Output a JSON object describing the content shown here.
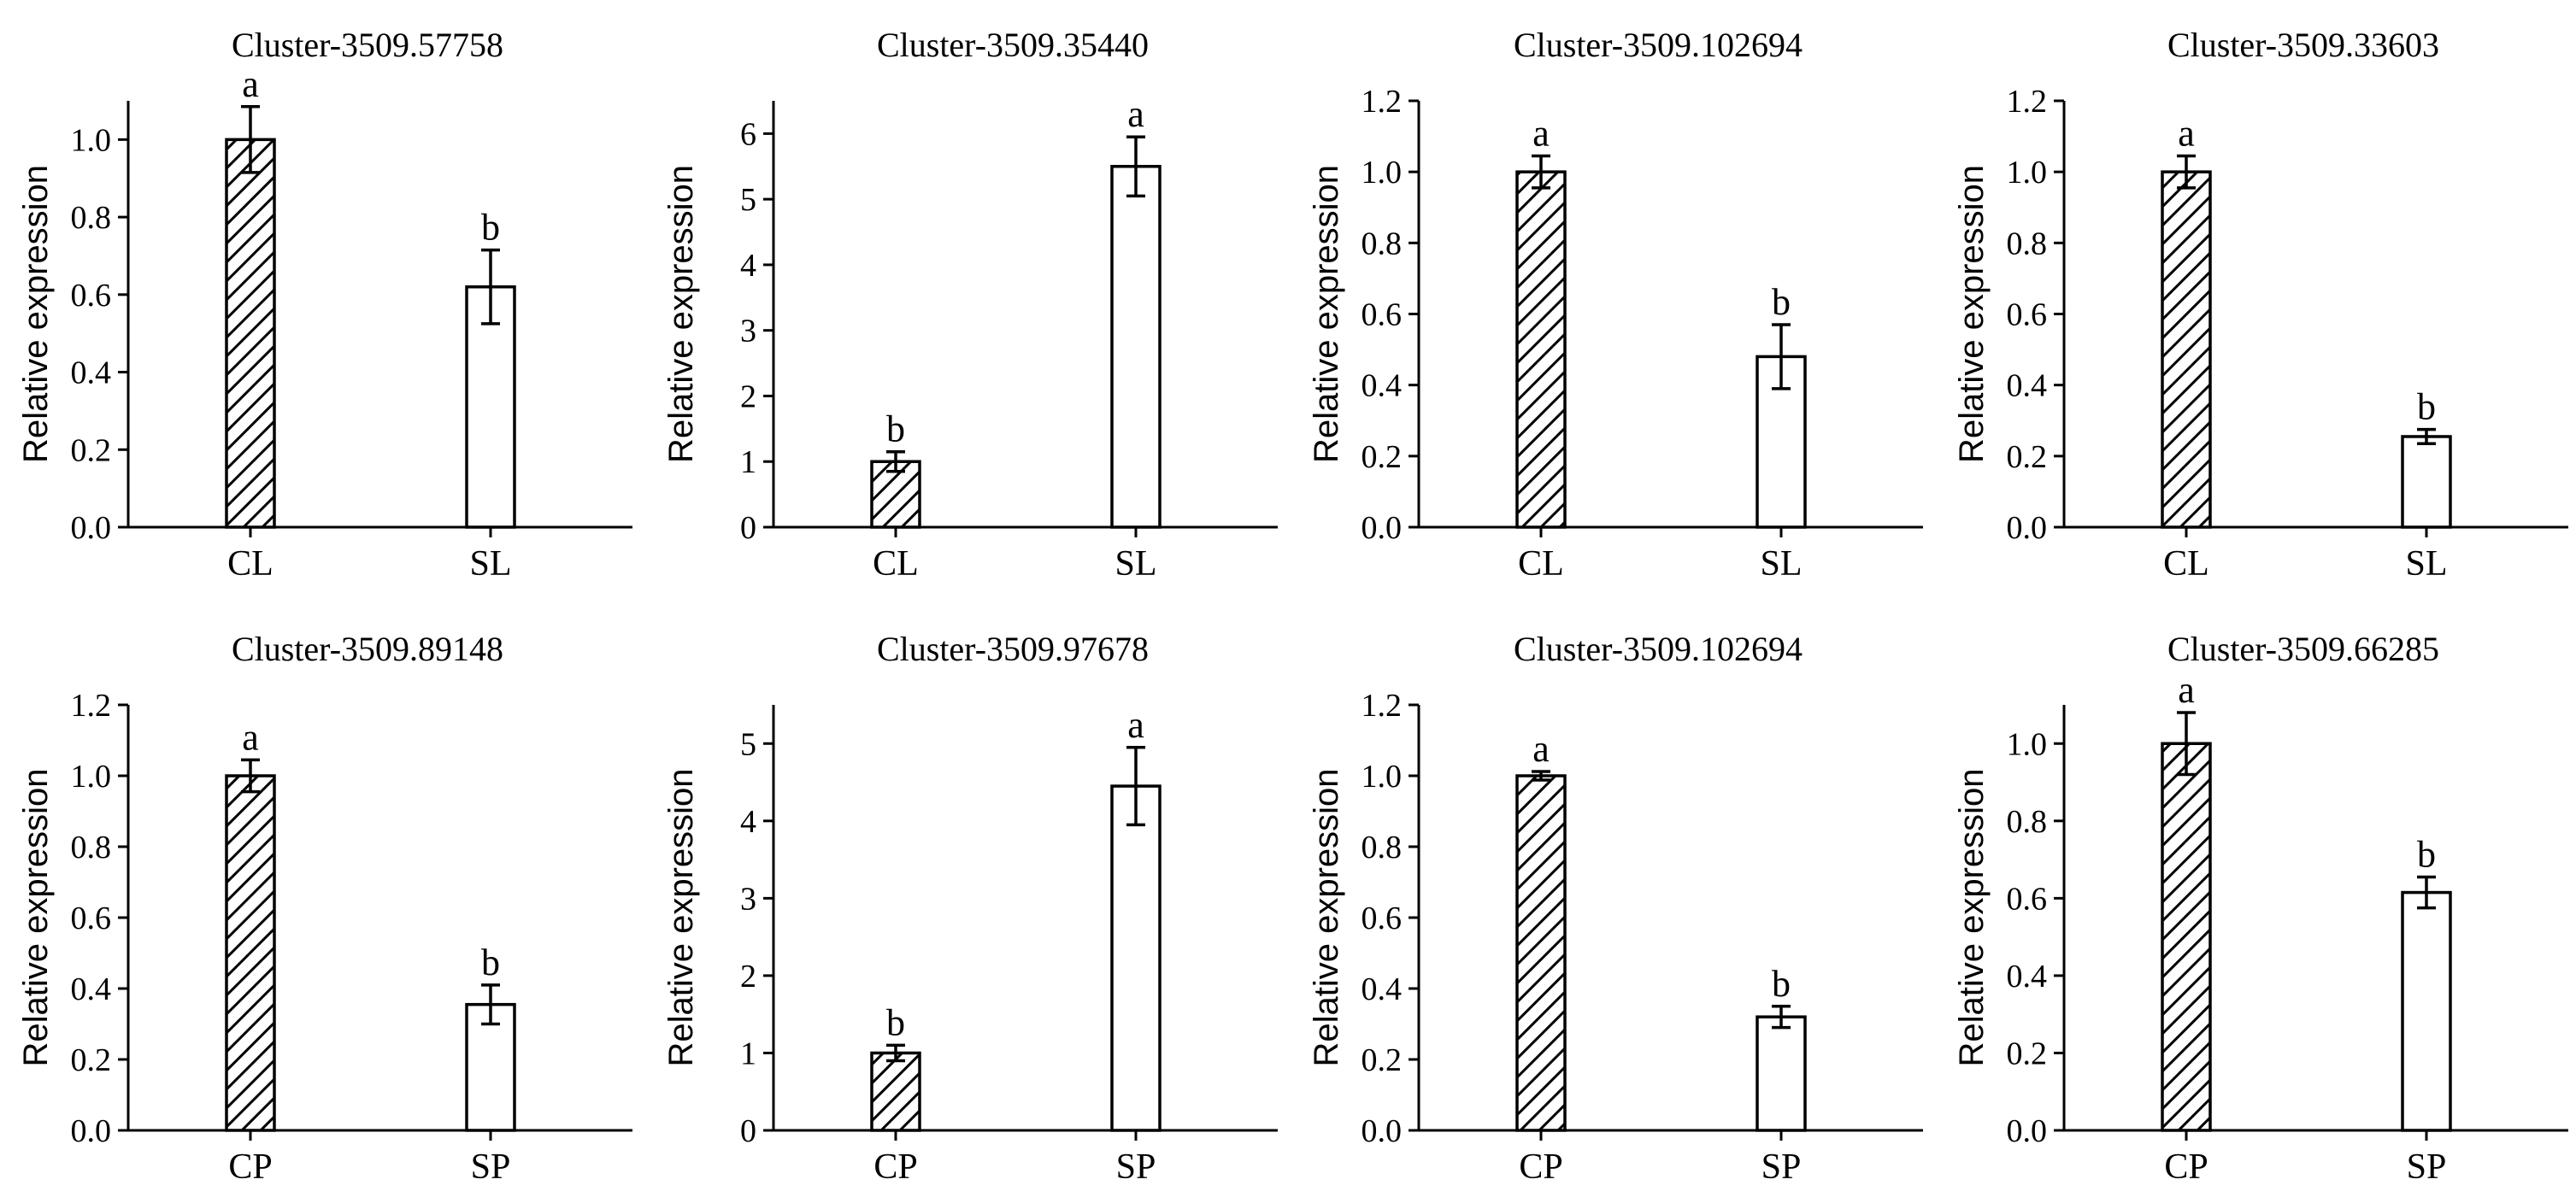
{
  "chart_data": [
    {
      "type": "bar",
      "title": "Cluster-3509.57758",
      "ylabel": "Relative expression",
      "categories": [
        "CL",
        "SL"
      ],
      "values": [
        1.0,
        0.62
      ],
      "errors": [
        0.085,
        0.095
      ],
      "significance": [
        "a",
        "b"
      ],
      "fill_patterns": [
        "hatched",
        "open"
      ],
      "ylim": [
        0,
        1.1
      ],
      "yticks": [
        "0.0",
        "0.2",
        "0.4",
        "0.6",
        "0.8",
        "1.0"
      ]
    },
    {
      "type": "bar",
      "title": "Cluster-3509.35440",
      "ylabel": "Relative expression",
      "categories": [
        "CL",
        "SL"
      ],
      "values": [
        1.0,
        5.5
      ],
      "errors": [
        0.15,
        0.45
      ],
      "significance": [
        "b",
        "a"
      ],
      "fill_patterns": [
        "hatched",
        "open"
      ],
      "ylim": [
        0,
        6.5
      ],
      "yticks": [
        "0",
        "1",
        "2",
        "3",
        "4",
        "5",
        "6"
      ]
    },
    {
      "type": "bar",
      "title": "Cluster-3509.102694",
      "ylabel": "Relative expression",
      "categories": [
        "CL",
        "SL"
      ],
      "values": [
        1.0,
        0.48
      ],
      "errors": [
        0.045,
        0.09
      ],
      "significance": [
        "a",
        "b"
      ],
      "fill_patterns": [
        "hatched",
        "open"
      ],
      "ylim": [
        0,
        1.2
      ],
      "yticks": [
        "0.0",
        "0.2",
        "0.4",
        "0.6",
        "0.8",
        "1.0",
        "1.2"
      ]
    },
    {
      "type": "bar",
      "title": "Cluster-3509.33603",
      "ylabel": "Relative expression",
      "categories": [
        "CL",
        "SL"
      ],
      "values": [
        1.0,
        0.255
      ],
      "errors": [
        0.045,
        0.02
      ],
      "significance": [
        "a",
        "b"
      ],
      "fill_patterns": [
        "hatched",
        "open"
      ],
      "ylim": [
        0,
        1.2
      ],
      "yticks": [
        "0.0",
        "0.2",
        "0.4",
        "0.6",
        "0.8",
        "1.0",
        "1.2"
      ]
    },
    {
      "type": "bar",
      "title": "Cluster-3509.89148",
      "ylabel": "Relative expression",
      "categories": [
        "CP",
        "SP"
      ],
      "values": [
        1.0,
        0.355
      ],
      "errors": [
        0.045,
        0.055
      ],
      "significance": [
        "a",
        "b"
      ],
      "fill_patterns": [
        "hatched",
        "open"
      ],
      "ylim": [
        0,
        1.2
      ],
      "yticks": [
        "0.0",
        "0.2",
        "0.4",
        "0.6",
        "0.8",
        "1.0",
        "1.2"
      ]
    },
    {
      "type": "bar",
      "title": "Cluster-3509.97678",
      "ylabel": "Relative expression",
      "categories": [
        "CP",
        "SP"
      ],
      "values": [
        1.0,
        4.45
      ],
      "errors": [
        0.1,
        0.5
      ],
      "significance": [
        "b",
        "a"
      ],
      "fill_patterns": [
        "hatched",
        "open"
      ],
      "ylim": [
        0,
        5.5
      ],
      "yticks": [
        "0",
        "1",
        "2",
        "3",
        "4",
        "5"
      ]
    },
    {
      "type": "bar",
      "title": "Cluster-3509.102694",
      "ylabel": "Relative expression",
      "categories": [
        "CP",
        "SP"
      ],
      "values": [
        1.0,
        0.32
      ],
      "errors": [
        0.012,
        0.03
      ],
      "significance": [
        "a",
        "b"
      ],
      "fill_patterns": [
        "hatched",
        "open"
      ],
      "ylim": [
        0,
        1.2
      ],
      "yticks": [
        "0.0",
        "0.2",
        "0.4",
        "0.6",
        "0.8",
        "1.0",
        "1.2"
      ]
    },
    {
      "type": "bar",
      "title": "Cluster-3509.66285",
      "ylabel": "Relative expression",
      "categories": [
        "CP",
        "SP"
      ],
      "values": [
        1.0,
        0.615
      ],
      "errors": [
        0.08,
        0.04
      ],
      "significance": [
        "a",
        "b"
      ],
      "fill_patterns": [
        "hatched",
        "open"
      ],
      "ylim": [
        0,
        1.1
      ],
      "yticks": [
        "0.0",
        "0.2",
        "0.4",
        "0.6",
        "0.8",
        "1.0"
      ]
    }
  ]
}
